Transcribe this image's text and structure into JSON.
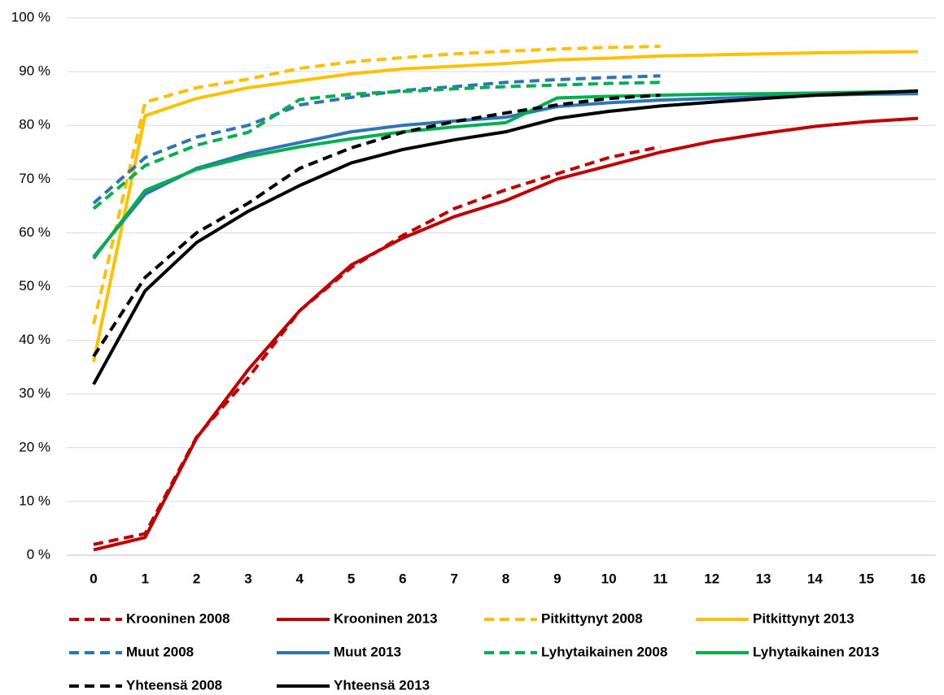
{
  "chart_data": {
    "type": "line",
    "x": [
      0,
      1,
      2,
      3,
      4,
      5,
      6,
      7,
      8,
      9,
      10,
      11,
      12,
      13,
      14,
      15,
      16
    ],
    "xlim": [
      0,
      16
    ],
    "xticks": [
      0,
      1,
      2,
      3,
      4,
      5,
      6,
      7,
      8,
      9,
      10,
      11,
      12,
      13,
      14,
      15,
      16
    ],
    "ylim": [
      0,
      100
    ],
    "yticks": [
      {
        "value": 0,
        "label": "0 %"
      },
      {
        "value": 10,
        "label": "10 %"
      },
      {
        "value": 20,
        "label": "20 %"
      },
      {
        "value": 30,
        "label": "30 %"
      },
      {
        "value": 40,
        "label": "40 %"
      },
      {
        "value": 50,
        "label": "50 %"
      },
      {
        "value": 60,
        "label": "60 %"
      },
      {
        "value": 70,
        "label": "70 %"
      },
      {
        "value": 80,
        "label": "80 %"
      },
      {
        "value": 90,
        "label": "90 %"
      },
      {
        "value": 100,
        "label": "100 %"
      }
    ],
    "grid": true,
    "legend": "bottom",
    "series": [
      {
        "name": "Krooninen 2008",
        "color": "#c00000",
        "dashed": true,
        "values": [
          2,
          4,
          22,
          33,
          45.5,
          53.5,
          59.5,
          64.5,
          68,
          71,
          74,
          76,
          null,
          null,
          null,
          null,
          null
        ]
      },
      {
        "name": "Krooninen 2013",
        "color": "#c00000",
        "dashed": false,
        "values": [
          1,
          3.3,
          21.8,
          34.5,
          45.5,
          54,
          59,
          63,
          66,
          70,
          72.5,
          75,
          77,
          78.5,
          79.8,
          80.7,
          81.3
        ]
      },
      {
        "name": "Pitkittynyt 2008",
        "color": "#ffc000",
        "dashed": true,
        "values": [
          43,
          84.3,
          87,
          88.6,
          90.6,
          91.8,
          92.6,
          93.3,
          93.8,
          94.2,
          94.5,
          94.7,
          null,
          null,
          null,
          null,
          null
        ]
      },
      {
        "name": "Pitkittynyt 2013",
        "color": "#ffc000",
        "dashed": false,
        "values": [
          36,
          81.8,
          85,
          87,
          88.3,
          89.6,
          90.5,
          91,
          91.5,
          92.2,
          92.5,
          92.9,
          93.1,
          93.3,
          93.5,
          93.6,
          93.7
        ]
      },
      {
        "name": "Muut 2008",
        "color": "#2e75b6",
        "dashed": true,
        "values": [
          65.5,
          74,
          77.8,
          80,
          83.8,
          85.2,
          86.5,
          87.2,
          88,
          88.5,
          88.9,
          89.2,
          null,
          null,
          null,
          null,
          null
        ]
      },
      {
        "name": "Muut 2013",
        "color": "#2e75b6",
        "dashed": false,
        "values": [
          55.5,
          67.2,
          72,
          74.8,
          76.8,
          78.8,
          80,
          80.8,
          81.5,
          83.5,
          84.2,
          84.7,
          85,
          85.3,
          85.6,
          85.8,
          85.9
        ]
      },
      {
        "name": "Lyhytaikainen 2008",
        "color": "#00b050",
        "dashed": true,
        "values": [
          64.5,
          72.5,
          76.3,
          78.7,
          84.8,
          85.8,
          86.3,
          86.8,
          87.2,
          87.5,
          87.8,
          88,
          null,
          null,
          null,
          null,
          null
        ]
      },
      {
        "name": "Lyhytaikainen 2013",
        "color": "#00b050",
        "dashed": false,
        "values": [
          55.2,
          67.9,
          71.8,
          74.2,
          76,
          77.5,
          78.8,
          79.7,
          80.5,
          85.1,
          85.4,
          85.6,
          85.8,
          85.9,
          86,
          86.2,
          86.3
        ]
      },
      {
        "name": "Yhteensä 2008",
        "color": "#000000",
        "dashed": true,
        "values": [
          37,
          51.7,
          60,
          65.5,
          72,
          75.8,
          78.7,
          80.7,
          82.3,
          83.8,
          85,
          85.6,
          null,
          null,
          null,
          null,
          null
        ]
      },
      {
        "name": "Yhteensä 2013",
        "color": "#000000",
        "dashed": false,
        "values": [
          31.8,
          49.2,
          58.2,
          64,
          68.8,
          73,
          75.5,
          77.3,
          78.8,
          81.3,
          82.6,
          83.6,
          84.3,
          85,
          85.6,
          86,
          86.4
        ]
      }
    ]
  }
}
